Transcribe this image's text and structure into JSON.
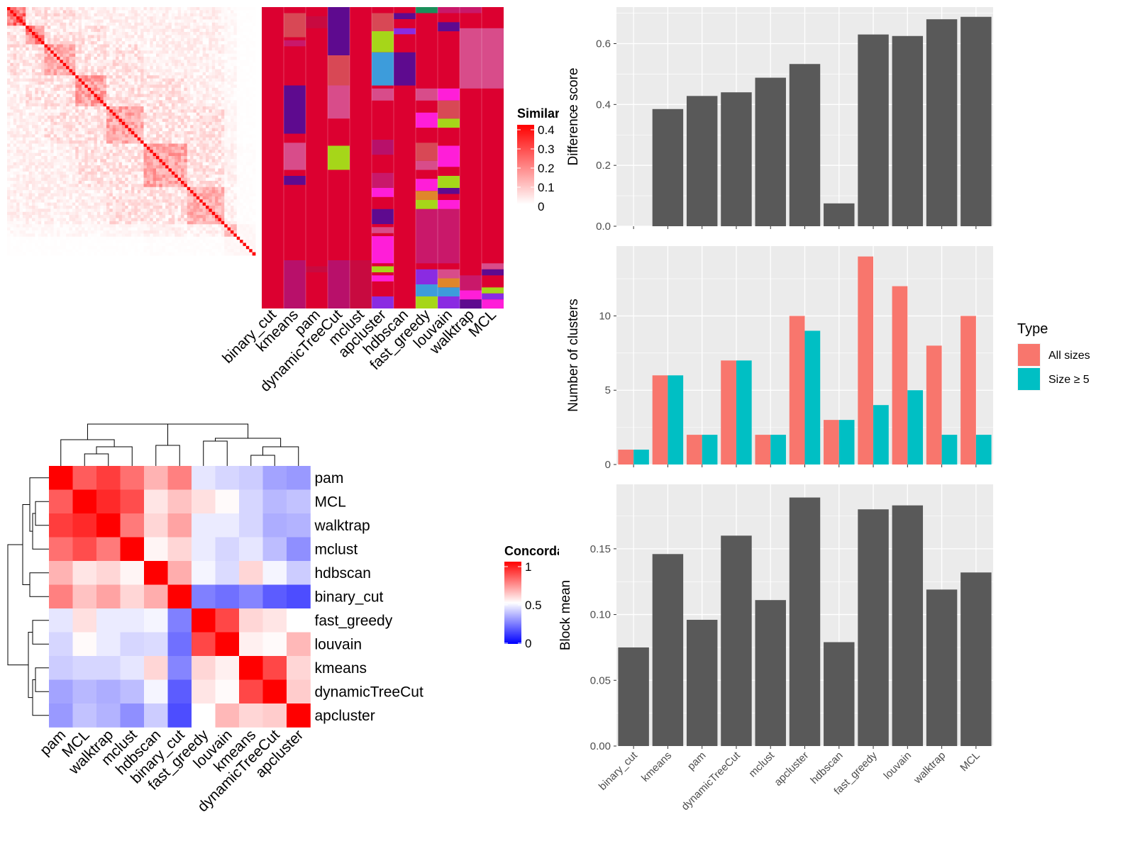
{
  "methods": [
    "binary_cut",
    "kmeans",
    "pam",
    "dynamicTreeCut",
    "mclust",
    "apcluster",
    "hdbscan",
    "fast_greedy",
    "louvain",
    "walktrap",
    "MCL"
  ],
  "colors": {
    "bar_gray": "#595959",
    "panel_bg": "#ebebeb",
    "all_sizes": "#f8766d",
    "size_ge5": "#00bfc4",
    "red": "#ff0000",
    "blue": "#0000ff",
    "label_fill": "#dc0030"
  },
  "similarity_legend": {
    "title": "Similarity",
    "ticks": [
      "0.4",
      "0.3",
      "0.2",
      "0.1",
      "0"
    ]
  },
  "concordance_legend": {
    "title": "Concordance",
    "ticks": [
      "1",
      "0.5",
      "0"
    ]
  },
  "type_legend": {
    "title": "Type",
    "items": [
      "All sizes",
      "Size ≥ 5"
    ]
  },
  "concordance_rows": [
    "pam",
    "MCL",
    "walktrap",
    "mclust",
    "hdbscan",
    "binary_cut",
    "fast_greedy",
    "louvain",
    "kmeans",
    "dynamicTreeCut",
    "apcluster"
  ],
  "concordance_matrix": [
    [
      1,
      0.82,
      0.88,
      0.78,
      0.65,
      0.75,
      0.45,
      0.42,
      0.4,
      0.32,
      0.3
    ],
    [
      0.82,
      1,
      0.92,
      0.85,
      0.55,
      0.62,
      0.56,
      0.51,
      0.42,
      0.36,
      0.38
    ],
    [
      0.88,
      0.92,
      1,
      0.76,
      0.58,
      0.68,
      0.46,
      0.46,
      0.42,
      0.34,
      0.35
    ],
    [
      0.78,
      0.85,
      0.76,
      1,
      0.52,
      0.58,
      0.46,
      0.42,
      0.45,
      0.37,
      0.28
    ],
    [
      0.65,
      0.55,
      0.58,
      0.52,
      1,
      0.66,
      0.48,
      0.43,
      0.58,
      0.48,
      0.4
    ],
    [
      0.75,
      0.62,
      0.68,
      0.58,
      0.66,
      1,
      0.25,
      0.22,
      0.26,
      0.18,
      0.15
    ],
    [
      0.45,
      0.56,
      0.46,
      0.46,
      0.48,
      0.25,
      1,
      0.86,
      0.58,
      0.55,
      0.5
    ],
    [
      0.42,
      0.51,
      0.46,
      0.42,
      0.43,
      0.22,
      0.86,
      1,
      0.53,
      0.51,
      0.64
    ],
    [
      0.4,
      0.42,
      0.42,
      0.45,
      0.58,
      0.26,
      0.58,
      0.53,
      1,
      0.86,
      0.58
    ],
    [
      0.32,
      0.36,
      0.34,
      0.37,
      0.48,
      0.18,
      0.55,
      0.51,
      0.86,
      1,
      0.6
    ],
    [
      0.3,
      0.38,
      0.35,
      0.28,
      0.4,
      0.15,
      0.5,
      0.64,
      0.58,
      0.6,
      1
    ]
  ],
  "chart_data": [
    {
      "type": "heatmap",
      "title": "",
      "legend_title": "Similarity",
      "value_range": [
        0,
        0.4
      ],
      "description_values": "sorted term similarity matrix with diagonal blocks"
    },
    {
      "type": "heatmap",
      "title": "",
      "columns": [
        "binary_cut",
        "kmeans",
        "pam",
        "dynamicTreeCut",
        "mclust",
        "apcluster",
        "hdbscan",
        "fast_greedy",
        "louvain",
        "walktrap",
        "MCL"
      ],
      "legend_title": "Concordance",
      "value_range": [
        0,
        1
      ]
    },
    {
      "type": "bar",
      "categories": [
        "binary_cut",
        "kmeans",
        "pam",
        "dynamicTreeCut",
        "mclust",
        "apcluster",
        "hdbscan",
        "fast_greedy",
        "louvain",
        "walktrap",
        "MCL"
      ],
      "values": [
        0.0,
        0.385,
        0.428,
        0.44,
        0.488,
        0.533,
        0.075,
        0.63,
        0.625,
        0.68,
        0.688
      ],
      "ylabel": "Difference score",
      "ylim": [
        0,
        0.72
      ],
      "yticks": [
        "0.0",
        "0.2",
        "0.4",
        "0.6"
      ],
      "grid": true
    },
    {
      "type": "bar",
      "categories": [
        "binary_cut",
        "kmeans",
        "pam",
        "dynamicTreeCut",
        "mclust",
        "apcluster",
        "hdbscan",
        "fast_greedy",
        "louvain",
        "walktrap",
        "MCL"
      ],
      "series": [
        {
          "name": "All sizes",
          "values": [
            1,
            6,
            2,
            7,
            2,
            10,
            3,
            14,
            12,
            8,
            10
          ]
        },
        {
          "name": "Size ≥ 5",
          "values": [
            1,
            6,
            2,
            7,
            2,
            9,
            3,
            4,
            5,
            2,
            2
          ]
        }
      ],
      "ylabel": "Number of clusters",
      "ylim": [
        0,
        14.7
      ],
      "yticks": [
        "0",
        "5",
        "10"
      ],
      "legend": "right",
      "grid": true
    },
    {
      "type": "bar",
      "categories": [
        "binary_cut",
        "kmeans",
        "pam",
        "dynamicTreeCut",
        "mclust",
        "apcluster",
        "hdbscan",
        "fast_greedy",
        "louvain",
        "walktrap",
        "MCL"
      ],
      "values": [
        0.075,
        0.146,
        0.096,
        0.16,
        0.111,
        0.189,
        0.079,
        0.18,
        0.183,
        0.119,
        0.132
      ],
      "ylabel": "Block mean",
      "ylim": [
        0,
        0.199
      ],
      "yticks": [
        "0.00",
        "0.05",
        "0.10",
        "0.15"
      ],
      "grid": true
    }
  ]
}
